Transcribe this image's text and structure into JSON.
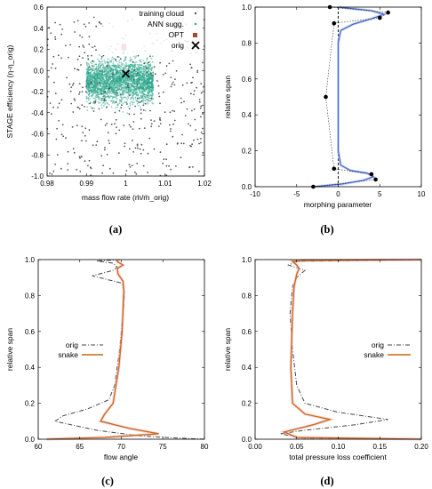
{
  "figure": {
    "captions": [
      "(a)",
      "(b)",
      "(c)",
      "(d)"
    ]
  },
  "chart_data": [
    {
      "panel": "(a)",
      "type": "scatter",
      "xlabel": "mass flow rate (ṁ/ṁ_orig)",
      "ylabel": "STAGE efficiency (η-η_orig)",
      "xlim": [
        0.98,
        1.02
      ],
      "ylim": [
        -1.0,
        0.65
      ],
      "xticks": [
        "0.98",
        "0.99",
        "1",
        "1.01",
        "1.02"
      ],
      "yticks": [
        "-1.0",
        "-0.8",
        "-0.6",
        "-0.4",
        "-0.2",
        "0.0",
        "0.2",
        "0.4",
        "0.6"
      ],
      "legend_position": "top-right",
      "series": [
        {
          "name": "training cloud",
          "color": "#555555",
          "marker": "dot",
          "x_range": [
            0.98,
            1.02
          ],
          "y_range": [
            -1.0,
            0.65
          ],
          "approx_points": 420
        },
        {
          "name": "ANN sugg.",
          "color": "#2aa58a",
          "marker": "dot",
          "x_range": [
            0.99,
            1.007
          ],
          "y_range": [
            -0.62,
            0.35
          ],
          "approx_points": 2500
        },
        {
          "name": "OPT",
          "color": "#b5442a",
          "marker": "square",
          "points": [
            [
              0.9995,
              0.27
            ],
            [
              0.9995,
              0.25
            ]
          ]
        },
        {
          "name": "orig",
          "color": "#000000",
          "marker": "x",
          "points": [
            [
              1.0,
              0.0
            ]
          ]
        }
      ]
    },
    {
      "panel": "(b)",
      "type": "line",
      "xlabel": "morphing parameter",
      "ylabel": "relative span",
      "xlim": [
        -10,
        10
      ],
      "ylim": [
        0,
        1
      ],
      "xticks": [
        "-10",
        "-5",
        "0",
        "5",
        "10"
      ],
      "yticks": [
        "0.0",
        "0.2",
        "0.4",
        "0.6",
        "0.8",
        "1.0"
      ],
      "control_points": [
        {
          "x": -3.0,
          "y": 0.0
        },
        {
          "x": 4.5,
          "y": 0.04
        },
        {
          "x": 4.0,
          "y": 0.07
        },
        {
          "x": -0.5,
          "y": 0.1
        },
        {
          "x": -1.5,
          "y": 0.5
        },
        {
          "x": -0.5,
          "y": 0.91
        },
        {
          "x": 5.0,
          "y": 0.94
        },
        {
          "x": 6.0,
          "y": 0.97
        },
        {
          "x": -1.0,
          "y": 1.0
        }
      ],
      "curve": {
        "x": [
          -3.0,
          0.5,
          3.0,
          4.2,
          3.5,
          1.5,
          0.3,
          0.0,
          0.0,
          0.0,
          0.3,
          1.8,
          4.0,
          5.5,
          4.0,
          1.5,
          0.0
        ],
        "y": [
          0.0,
          0.015,
          0.035,
          0.055,
          0.075,
          0.09,
          0.12,
          0.2,
          0.5,
          0.8,
          0.87,
          0.905,
          0.935,
          0.96,
          0.98,
          0.993,
          1.0
        ]
      },
      "baseline_x": 0.0
    },
    {
      "panel": "(c)",
      "type": "line",
      "xlabel": "flow angle",
      "ylabel": "relative span",
      "xlim": [
        60,
        80
      ],
      "ylim": [
        0,
        1
      ],
      "xticks": [
        "60",
        "65",
        "70",
        "75",
        "80"
      ],
      "yticks": [
        "0.0",
        "0.2",
        "0.4",
        "0.6",
        "0.8",
        "1.0"
      ],
      "legend_position": "center-left",
      "series": [
        {
          "name": "orig",
          "color": "#444444",
          "dash": "dashdot",
          "x": [
            80.0,
            76.0,
            72.0,
            67.0,
            62.0,
            63.0,
            66.0,
            68.5,
            69.2,
            69.8,
            70.2,
            70.4,
            70.0,
            66.5,
            69.0,
            69.5,
            69.0,
            67.0,
            70.0
          ],
          "y": [
            0.0,
            0.008,
            0.02,
            0.05,
            0.1,
            0.13,
            0.17,
            0.22,
            0.3,
            0.5,
            0.7,
            0.82,
            0.87,
            0.91,
            0.94,
            0.96,
            0.98,
            0.993,
            1.0
          ]
        },
        {
          "name": "snake",
          "color": "#c76a12",
          "dash": "solid",
          "x": [
            61.0,
            68.0,
            74.5,
            71.0,
            67.5,
            68.0,
            69.0,
            69.7,
            70.1,
            70.3,
            70.2,
            69.6,
            69.5,
            70.2,
            69.5,
            69.5
          ],
          "y": [
            0.0,
            0.01,
            0.03,
            0.06,
            0.1,
            0.14,
            0.2,
            0.4,
            0.6,
            0.83,
            0.88,
            0.92,
            0.95,
            0.97,
            0.99,
            1.0
          ]
        }
      ]
    },
    {
      "panel": "(d)",
      "type": "line",
      "xlabel": "total pressure loss coefficient",
      "ylabel": "relative span",
      "xlim": [
        0,
        0.2
      ],
      "ylim": [
        0,
        1
      ],
      "xticks": [
        "0.00",
        "0.05",
        "0.10",
        "0.15",
        "0.20"
      ],
      "yticks": [
        "0.0",
        "0.2",
        "0.4",
        "0.6",
        "0.8",
        "1.0"
      ],
      "legend_position": "center-right",
      "series": [
        {
          "name": "orig",
          "color": "#444444",
          "dash": "dashdot",
          "x": [
            0.2,
            0.06,
            0.03,
            0.06,
            0.12,
            0.16,
            0.1,
            0.06,
            0.05,
            0.045,
            0.042,
            0.045,
            0.05,
            0.06,
            0.04,
            0.05,
            0.2
          ],
          "y": [
            0.0,
            0.005,
            0.03,
            0.05,
            0.08,
            0.11,
            0.15,
            0.2,
            0.3,
            0.5,
            0.7,
            0.85,
            0.9,
            0.94,
            0.97,
            0.99,
            1.0
          ]
        },
        {
          "name": "snake",
          "color": "#c76a12",
          "dash": "solid",
          "x": [
            0.2,
            0.05,
            0.035,
            0.07,
            0.09,
            0.06,
            0.045,
            0.043,
            0.045,
            0.047,
            0.05,
            0.053,
            0.05,
            0.045,
            0.06,
            0.2
          ],
          "y": [
            0.0,
            0.01,
            0.04,
            0.08,
            0.11,
            0.14,
            0.2,
            0.4,
            0.7,
            0.85,
            0.92,
            0.95,
            0.97,
            0.99,
            0.995,
            1.0
          ]
        }
      ]
    }
  ]
}
